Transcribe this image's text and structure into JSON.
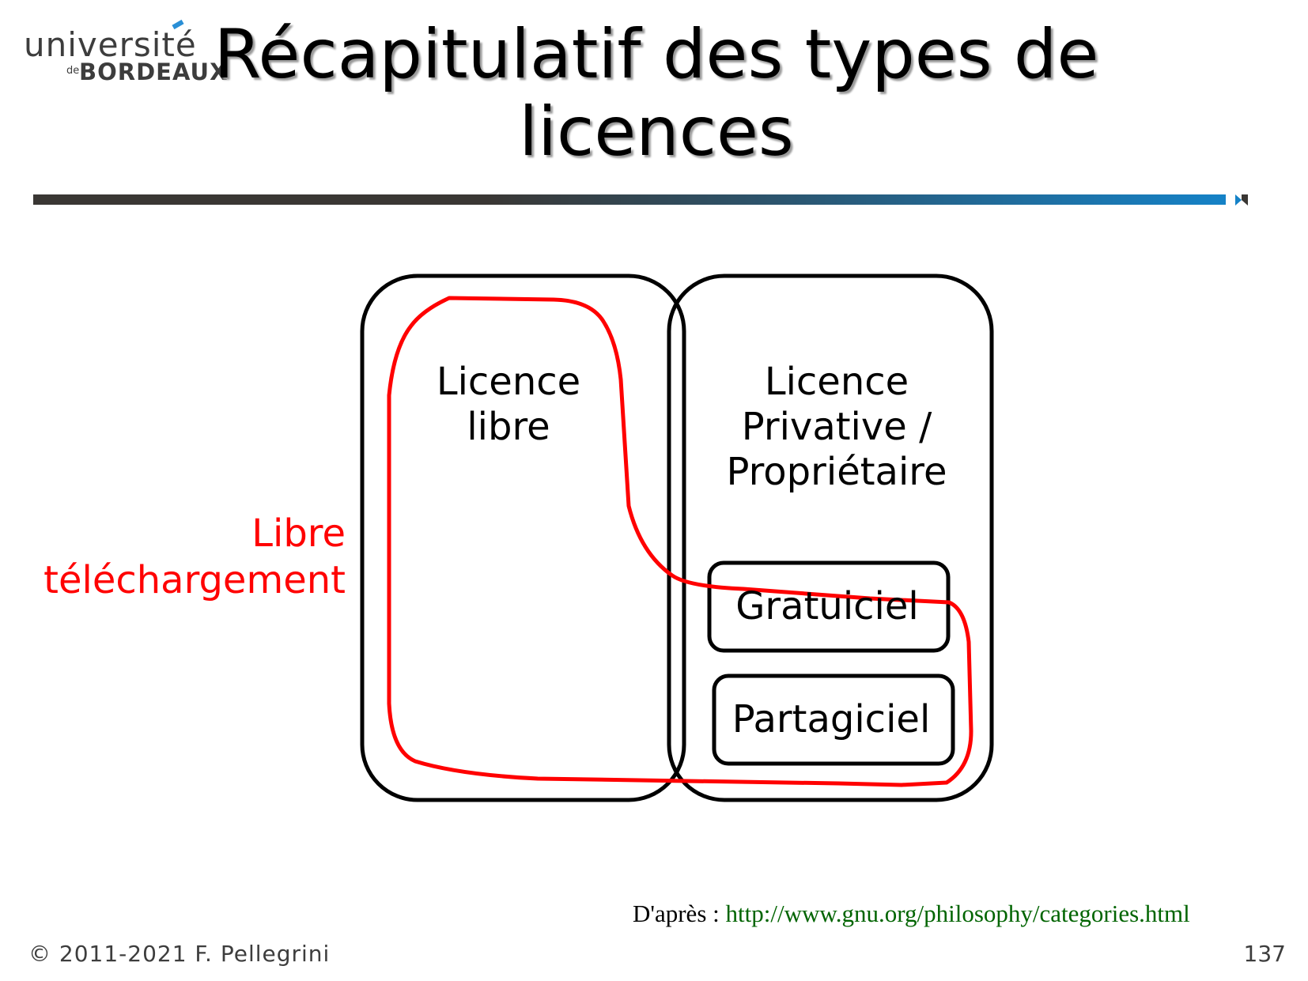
{
  "logo": {
    "line1": "université",
    "de": "de",
    "line2": "BORDEAUX"
  },
  "slide": {
    "title": "Récapitulatif des types de licences",
    "page_number": "137",
    "copyright": "© 2011-2021 F. Pellegrini"
  },
  "diagram": {
    "free_license_line1": "Licence",
    "free_license_line2": "libre",
    "proprietary_line1": "Licence",
    "proprietary_line2": "Privative /",
    "proprietary_line3": "Propriétaire",
    "freeware": "Gratuiciel",
    "shareware": "Partagiciel",
    "free_download_line1": "Libre",
    "free_download_line2": "téléchargement"
  },
  "source": {
    "prefix": "D'après : ",
    "url": "http://www.gnu.org/philosophy/categories.html"
  },
  "colors": {
    "outline": "#000000",
    "highlight": "#ff0000",
    "rule_dark": "#3a3734",
    "rule_blue": "#1582c7",
    "link": "#006400"
  }
}
